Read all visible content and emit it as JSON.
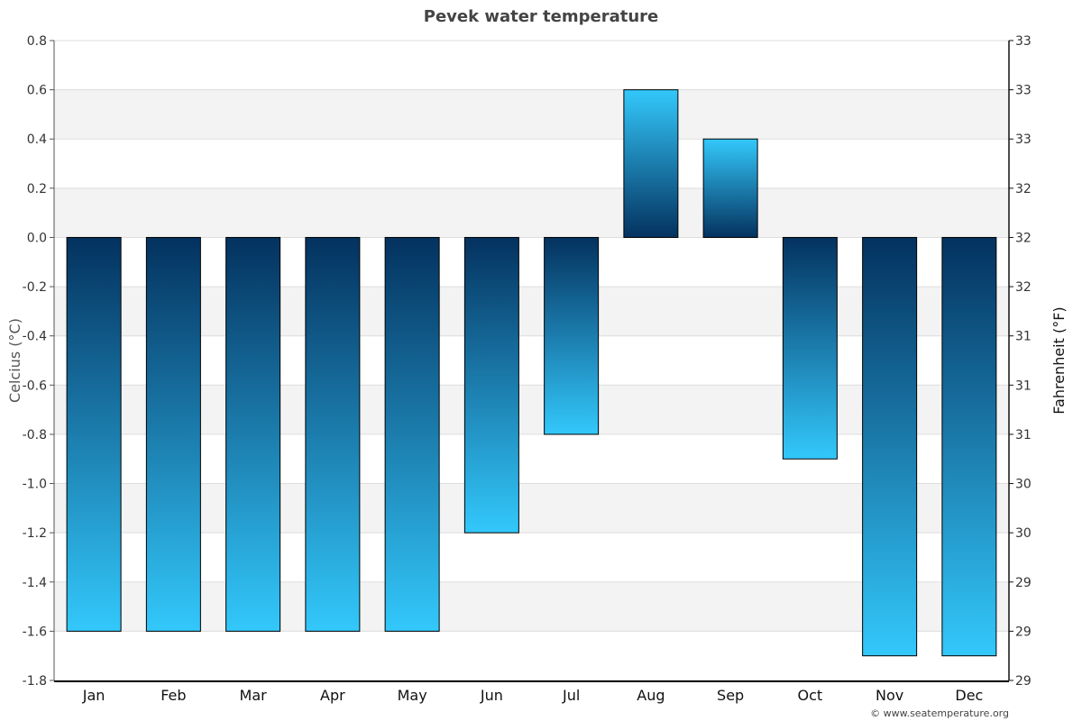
{
  "chart_data": {
    "type": "bar",
    "title": "Pevek water temperature",
    "categories": [
      "Jan",
      "Feb",
      "Mar",
      "Apr",
      "May",
      "Jun",
      "Jul",
      "Aug",
      "Sep",
      "Oct",
      "Nov",
      "Dec"
    ],
    "values": [
      -1.6,
      -1.6,
      -1.6,
      -1.6,
      -1.6,
      -1.2,
      -0.8,
      0.6,
      0.4,
      -0.9,
      -1.7,
      -1.7
    ],
    "ylabel": "Celcius (°C)",
    "ylabel_right": "Fahrenheit (°F)",
    "ylim": [
      -1.8,
      0.8
    ],
    "yticks": [
      "0.8",
      "0.6",
      "0.4",
      "0.2",
      "0.0",
      "-0.2",
      "-0.4",
      "-0.6",
      "-0.8",
      "-1.0",
      "-1.2",
      "-1.4",
      "-1.6",
      "-1.8"
    ],
    "yticks_right": [
      "33",
      "33",
      "33",
      "32",
      "32",
      "32",
      "31",
      "31",
      "31",
      "30",
      "30",
      "29",
      "29",
      "29"
    ],
    "grid": true,
    "legend": "none",
    "colors": {
      "bar_dark": "#04325f",
      "bar_light": "#33c8fb",
      "band_fill": "#f3f3f3",
      "grid": "#dddddd"
    }
  },
  "footer": {
    "credit": "© www.seatemperature.org"
  }
}
